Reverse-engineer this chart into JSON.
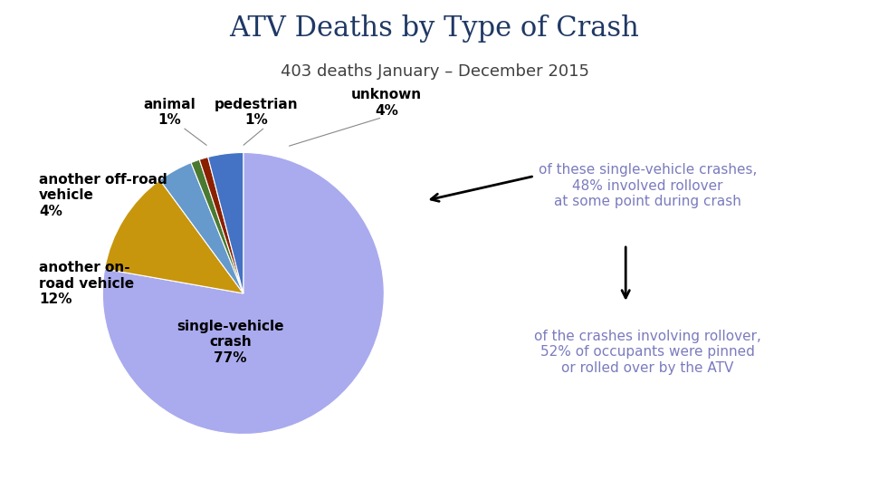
{
  "title": "ATV Deaths by Type of Crash",
  "subtitle": "403 deaths January – December 2015",
  "title_color": "#1f3864",
  "subtitle_color": "#404040",
  "slices": [
    {
      "label": "single-vehicle\ncrash\n77%",
      "value": 77,
      "color": "#aaaaee"
    },
    {
      "label": "another on-\nroad vehicle\n12%",
      "value": 12,
      "color": "#c8960c"
    },
    {
      "label": "another off-road\nvehicle\n4%",
      "value": 4,
      "color": "#6699cc"
    },
    {
      "label": "animal\n1%",
      "value": 1,
      "color": "#4a7a30"
    },
    {
      "label": "pedestrian\n1%",
      "value": 1,
      "color": "#8b2000"
    },
    {
      "label": "unknown\n4%",
      "value": 4,
      "color": "#4472c4"
    }
  ],
  "annotation1_text": "of these single-vehicle crashes,\n48% involved rollover\nat some point during crash",
  "annotation2_text": "of the crashes involving rollover,\n52% of occupants were pinned\nor rolled over by the ATV",
  "annotation_color": "#7b7bbf",
  "background_color": "#ffffff",
  "footer_color": "#999999",
  "title_fontsize": 22,
  "subtitle_fontsize": 13,
  "label_fontsize": 11,
  "anno_fontsize": 11
}
